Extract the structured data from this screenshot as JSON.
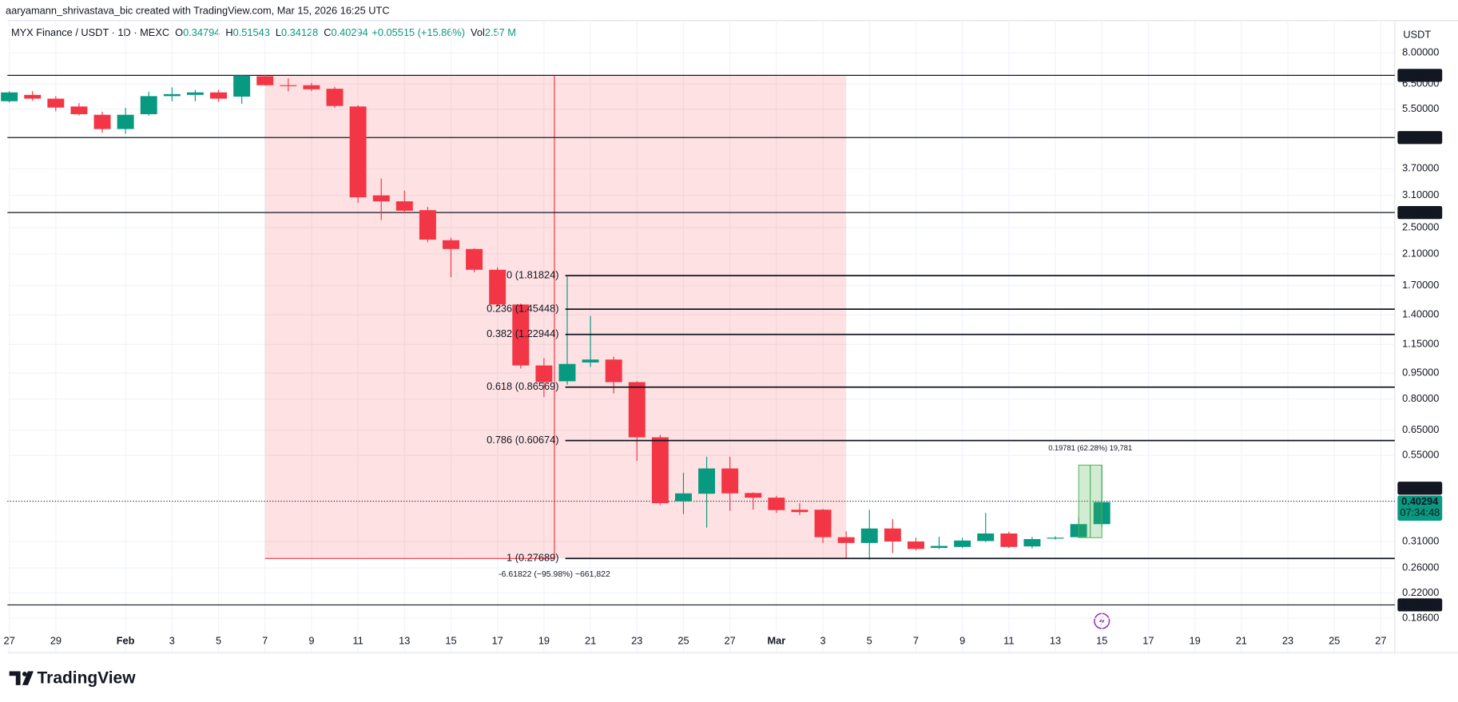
{
  "header": {
    "credit": "aaryamann_shrivastava_bic created with TradingView.com, Mar 15, 2026 16:25 UTC"
  },
  "legend": {
    "symbol": "MYX Finance / USDT · 1D · MEXC",
    "fields": [
      {
        "key": "O",
        "value": "0.34794"
      },
      {
        "key": "H",
        "value": "0.51543"
      },
      {
        "key": "L",
        "value": "0.34128"
      },
      {
        "key": "C",
        "value": "0.40294"
      }
    ],
    "change": "+0.05515 (+15.86%)",
    "volume": {
      "key": "Vol",
      "value": "2.57 M"
    }
  },
  "footer": {
    "brand": "TradingView"
  },
  "chart_data": {
    "type": "candlestick",
    "y_axis_label": "USDT",
    "categories": [
      "27",
      null,
      "29",
      null,
      null,
      "Feb",
      null,
      "3",
      null,
      "5",
      null,
      "7",
      null,
      "9",
      null,
      "11",
      null,
      "13",
      null,
      "15",
      null,
      "17",
      null,
      "19",
      null,
      "21",
      null,
      "23",
      null,
      "25",
      null,
      "27",
      null,
      "Mar",
      null,
      "3",
      null,
      "5",
      null,
      "7",
      null,
      "9",
      null,
      "11",
      null,
      "13",
      null,
      "15",
      null,
      "17",
      null,
      "19",
      null,
      "21",
      null,
      "23",
      null,
      "25",
      null,
      "27"
    ],
    "open": [
      5.8,
      6.05,
      5.9,
      5.6,
      5.3,
      4.82,
      5.32,
      6.0,
      6.05,
      6.15,
      5.98,
      6.85,
      6.45,
      6.45,
      6.3,
      5.6,
      3.1,
      2.98,
      2.81,
      2.3,
      2.17,
      1.89,
      1.5,
      1.0,
      0.9,
      1.02,
      1.04,
      0.895,
      0.62,
      0.405,
      0.426,
      0.504,
      0.428,
      0.415,
      0.383,
      0.383,
      0.319,
      0.307,
      0.338,
      0.31,
      0.297,
      0.299,
      0.311,
      0.327,
      0.3,
      0.316,
      0.319,
      0.34794,
      null,
      null,
      null,
      null,
      null,
      null,
      null,
      null,
      null,
      null,
      null,
      null
    ],
    "high": [
      6.2,
      6.2,
      6.0,
      5.73,
      5.41,
      5.55,
      6.18,
      6.36,
      6.25,
      6.25,
      6.9,
      6.92,
      6.75,
      6.55,
      6.38,
      5.65,
      3.47,
      3.2,
      2.87,
      2.34,
      2.18,
      1.92,
      1.51,
      1.05,
      1.82,
      1.39,
      1.06,
      0.9,
      0.63,
      0.49,
      0.545,
      0.545,
      0.43,
      0.42,
      0.4,
      0.385,
      0.332,
      0.383,
      0.36,
      0.318,
      0.32,
      0.318,
      0.375,
      0.331,
      0.32,
      0.321,
      0.364,
      0.51543,
      null,
      null,
      null,
      null,
      null,
      null,
      null,
      null,
      null,
      null,
      null,
      null
    ],
    "low": [
      5.75,
      5.82,
      5.42,
      5.27,
      4.7,
      4.67,
      5.27,
      5.8,
      5.8,
      5.78,
      5.7,
      6.44,
      6.2,
      6.2,
      5.55,
      2.95,
      2.63,
      2.76,
      2.27,
      1.8,
      1.86,
      1.48,
      0.98,
      0.81,
      0.88,
      0.99,
      0.83,
      0.53,
      0.395,
      0.372,
      0.34,
      0.38,
      0.383,
      0.375,
      0.37,
      0.307,
      0.277,
      0.275,
      0.287,
      0.292,
      0.295,
      0.297,
      0.309,
      0.297,
      0.296,
      0.314,
      0.318,
      0.34128,
      null,
      null,
      null,
      null,
      null,
      null,
      null,
      null,
      null,
      null,
      null,
      null
    ],
    "close": [
      6.15,
      5.9,
      5.56,
      5.32,
      4.82,
      5.3,
      6.0,
      6.08,
      6.15,
      5.9,
      6.88,
      6.45,
      6.42,
      6.28,
      5.62,
      3.06,
      2.98,
      2.8,
      2.31,
      2.17,
      1.89,
      1.5,
      1.0,
      0.895,
      1.01,
      1.04,
      0.895,
      0.62,
      0.4,
      0.427,
      0.504,
      0.427,
      0.415,
      0.382,
      0.377,
      0.319,
      0.307,
      0.338,
      0.31,
      0.295,
      0.301,
      0.312,
      0.327,
      0.299,
      0.315,
      0.318,
      0.348,
      0.40294,
      null,
      null,
      null,
      null,
      null,
      null,
      null,
      null,
      null,
      null,
      null,
      null
    ],
    "colors": {
      "up": "#089981",
      "down": "#f23645"
    },
    "log_scale": true,
    "grid": true,
    "ylim": [
      0.148,
      9.92
    ],
    "yticks": [
      {
        "value": 8,
        "label": "8.00000"
      },
      {
        "value": 6.5,
        "label": "6.50000"
      },
      {
        "value": 5.5,
        "label": "5.50000"
      },
      {
        "value": 3.7,
        "label": "3.70000"
      },
      {
        "value": 3.1,
        "label": "3.10000"
      },
      {
        "value": 2.5,
        "label": "2.50000"
      },
      {
        "value": 2.1,
        "label": "2.10000"
      },
      {
        "value": 1.7,
        "label": "1.70000"
      },
      {
        "value": 1.4,
        "label": "1.40000"
      },
      {
        "value": 1.15,
        "label": "1.15000"
      },
      {
        "value": 0.95,
        "label": "0.95000"
      },
      {
        "value": 0.8,
        "label": "0.80000"
      },
      {
        "value": 0.65,
        "label": "0.65000"
      },
      {
        "value": 0.55,
        "label": "0.55000"
      },
      {
        "value": 0.31,
        "label": "0.31000"
      },
      {
        "value": 0.26,
        "label": "0.26000"
      },
      {
        "value": 0.22,
        "label": "0.22000"
      },
      {
        "value": 0.186,
        "label": "0.18600"
      }
    ],
    "horizontal_lines": [
      6.88855,
      4.55418,
      2.76584,
      0.20333
    ],
    "dotted_line": 0.40527,
    "last_price": 0.40294,
    "countdown": "07:34:48",
    "fib_levels": [
      {
        "price": 1.81824,
        "label": "0 (1.81824)"
      },
      {
        "price": 1.45448,
        "label": "0.236 (1.45448)"
      },
      {
        "price": 1.22944,
        "label": "0.382 (1.22944)"
      },
      {
        "price": 0.86569,
        "label": "0.618 (0.86569)"
      },
      {
        "price": 0.60674,
        "label": "0.786 (0.60674)"
      },
      {
        "price": 0.27689,
        "label": "1 (0.27689)"
      }
    ],
    "measure_down": "-6.61822 (−95.98%) −661,822",
    "measure_up": "0.19781 (62.28%) 19,781"
  }
}
